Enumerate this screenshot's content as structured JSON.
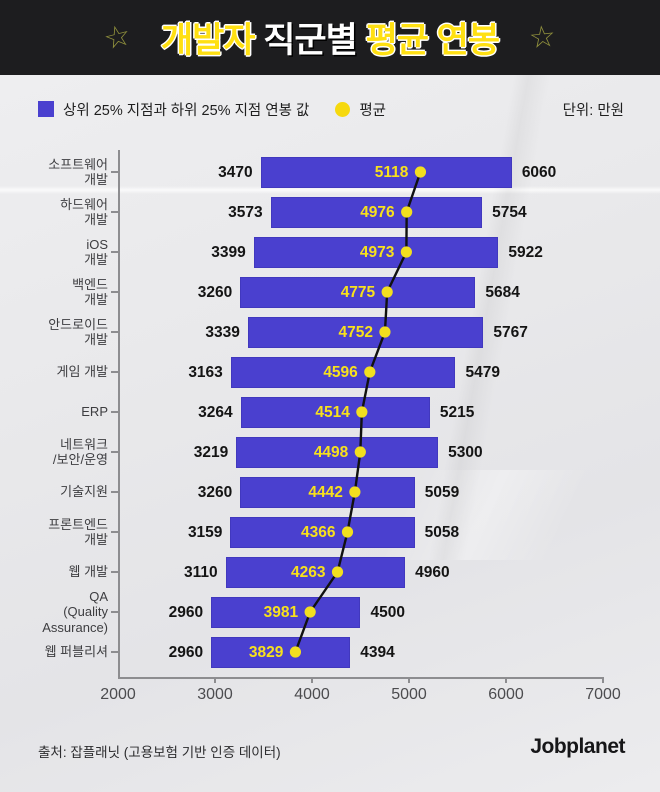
{
  "colors": {
    "header_bg": "#1d1d1f",
    "paper_bg": "#e9e9eb",
    "bar_blue": "#4a40cf",
    "accent_yellow": "#ffe012",
    "avg_dot_yellow": "#f2df1f",
    "avg_line_black": "#111111"
  },
  "header": {
    "star": "☆",
    "title_parts": [
      {
        "text": "개발자 ",
        "style": "yellow"
      },
      {
        "text": "직군별 ",
        "style": "white"
      },
      {
        "text": "평균 연봉",
        "style": "yellow"
      }
    ]
  },
  "legend": {
    "range_label": "상위 25% 지점과 하위 25% 지점 연봉 값",
    "avg_label": "평균",
    "unit_label": "단위: 만원"
  },
  "chart_data": {
    "type": "bar",
    "subtype": "horizontal-range-bars-with-average-line",
    "title": "개발자 직군별 평균 연봉",
    "unit": "만원",
    "xlim": [
      2000,
      7000
    ],
    "x_ticks": [
      2000,
      3000,
      4000,
      5000,
      6000,
      7000
    ],
    "grid": false,
    "legend_position": "top",
    "categories": [
      "소프트웨어 개발",
      "하드웨어 개발",
      "iOS 개발",
      "백엔드 개발",
      "안드로이드 개발",
      "게임 개발",
      "ERP",
      "네트워크/보안/운영",
      "기술지원",
      "프론트엔드 개발",
      "웹 개발",
      "QA (Quality Assurance)",
      "웹 퍼블리셔"
    ],
    "category_lines": [
      [
        "소프트웨어",
        "개발"
      ],
      [
        "하드웨어",
        "개발"
      ],
      [
        "iOS",
        "개발"
      ],
      [
        "백엔드",
        "개발"
      ],
      [
        "안드로이드",
        "개발"
      ],
      [
        "게임 개발"
      ],
      [
        "ERP"
      ],
      [
        "네트워크",
        "/보안/운영"
      ],
      [
        "기술지원"
      ],
      [
        "프론트엔드",
        "개발"
      ],
      [
        "웹 개발"
      ],
      [
        "QA",
        "(Quality",
        "Assurance)"
      ],
      [
        "웹 퍼블리셔"
      ]
    ],
    "series": [
      {
        "name": "하위 25% 지점",
        "values": [
          3470,
          3573,
          3399,
          3260,
          3339,
          3163,
          3264,
          3219,
          3260,
          3159,
          3110,
          2960,
          2960
        ]
      },
      {
        "name": "평균",
        "values": [
          5118,
          4976,
          4973,
          4775,
          4752,
          4596,
          4514,
          4498,
          4442,
          4366,
          4263,
          3981,
          3829
        ]
      },
      {
        "name": "상위 25% 지점",
        "values": [
          6060,
          5754,
          5922,
          5684,
          5767,
          5479,
          5215,
          5300,
          5059,
          5058,
          4960,
          4500,
          4394
        ]
      }
    ]
  },
  "footer": {
    "source": "출처: 잡플래닛 (고용보험 기반 인증 데이터)",
    "brand": "Jobplanet"
  }
}
